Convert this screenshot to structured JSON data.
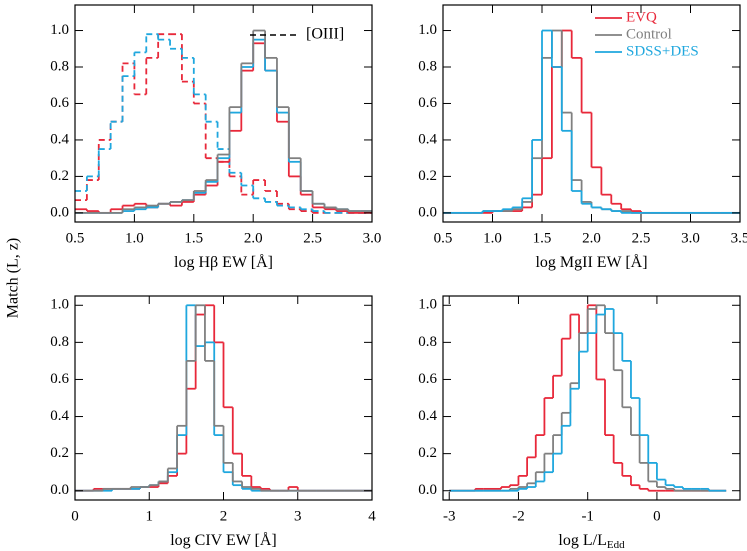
{
  "shared_ylabel": "Match (L, z)",
  "chart_data": [
    {
      "type": "histogram",
      "xlabel": "log Hβ EW [Å]",
      "annotation": "[OIII]",
      "xlim": [
        0.5,
        3.0
      ],
      "ylim": [
        -0.05,
        1.14
      ],
      "xticks": [
        0.5,
        {
          "value": 1,
          "label": "1.0"
        },
        1.5,
        {
          "value": 2,
          "label": "2.0"
        },
        2.5,
        {
          "value": 3,
          "label": "3.0"
        }
      ],
      "yticks": [
        {
          "value": 0,
          "label": "0.0"
        },
        {
          "value": 0.2,
          "label": "0.2"
        },
        {
          "value": 0.4,
          "label": "0.4"
        },
        {
          "value": 0.6,
          "label": "0.6"
        },
        {
          "value": 0.8,
          "label": "0.8"
        },
        {
          "value": 1,
          "label": "1.0"
        }
      ],
      "bins": [
        0.5,
        0.6,
        0.7,
        0.8,
        0.9,
        1.0,
        1.1,
        1.2,
        1.3,
        1.4,
        1.5,
        1.6,
        1.7,
        1.8,
        1.9,
        2.0,
        2.1,
        2.2,
        2.3,
        2.4,
        2.5,
        2.6,
        2.7,
        2.8,
        2.9,
        3.0
      ],
      "series": [
        {
          "color": "#e8283a",
          "dashed": true,
          "values": [
            0.07,
            0.18,
            0.4,
            0.5,
            0.82,
            0.65,
            0.85,
            0.98,
            0.98,
            0.72,
            0.6,
            0.3,
            0.28,
            0.2,
            0.1,
            0.18,
            0.12,
            0.05,
            0.02,
            0.01,
            0,
            0,
            0,
            0,
            0
          ]
        },
        {
          "color": "#1fa7de",
          "dashed": true,
          "values": [
            0.12,
            0.2,
            0.35,
            0.5,
            0.75,
            0.88,
            0.98,
            0.95,
            0.9,
            0.85,
            0.65,
            0.5,
            0.35,
            0.22,
            0.15,
            0.08,
            0.06,
            0.04,
            0.03,
            0.02,
            0.01,
            0,
            0,
            0,
            0
          ]
        },
        {
          "color": "#e8283a",
          "values": [
            0.02,
            0.01,
            0,
            0.02,
            0.04,
            0.05,
            0.03,
            0.05,
            0.04,
            0.06,
            0.1,
            0.15,
            0.28,
            0.45,
            0.78,
            0.93,
            0.78,
            0.5,
            0.2,
            0.1,
            0.03,
            0.02,
            0.01,
            0,
            0
          ]
        },
        {
          "color": "#1fa7de",
          "values": [
            0,
            0,
            0,
            0,
            0.01,
            0.02,
            0.03,
            0.05,
            0.06,
            0.07,
            0.11,
            0.17,
            0.3,
            0.55,
            0.8,
            0.95,
            0.78,
            0.55,
            0.28,
            0.12,
            0.05,
            0.03,
            0.02,
            0.01,
            0.01
          ]
        },
        {
          "color": "#808080",
          "values": [
            0,
            0,
            0,
            0,
            0.02,
            0.03,
            0.04,
            0.05,
            0.06,
            0.07,
            0.12,
            0.18,
            0.32,
            0.58,
            0.82,
            1.0,
            0.85,
            0.58,
            0.3,
            0.12,
            0.05,
            0.03,
            0.02,
            0.01,
            0.01
          ]
        }
      ]
    },
    {
      "type": "histogram",
      "xlabel": "log MgII EW [Å]",
      "legend": "upper right",
      "xlim": [
        0.5,
        3.5
      ],
      "ylim": [
        -0.05,
        1.14
      ],
      "xticks": [
        0.5,
        {
          "value": 1,
          "label": "1.0"
        },
        1.5,
        {
          "value": 2,
          "label": "2.0"
        },
        2.5,
        {
          "value": 3,
          "label": "3.0"
        },
        3.5
      ],
      "yticks": [
        {
          "value": 0,
          "label": "0.0"
        },
        {
          "value": 0.2,
          "label": "0.2"
        },
        {
          "value": 0.4,
          "label": "0.4"
        },
        {
          "value": 0.6,
          "label": "0.6"
        },
        {
          "value": 0.8,
          "label": "0.8"
        },
        {
          "value": 1,
          "label": "1.0"
        }
      ],
      "bins": [
        0.5,
        0.6,
        0.7,
        0.8,
        0.9,
        1.0,
        1.1,
        1.2,
        1.3,
        1.4,
        1.5,
        1.6,
        1.7,
        1.8,
        1.9,
        2.0,
        2.1,
        2.2,
        2.3,
        2.4,
        2.5,
        2.6,
        2.7,
        2.8,
        2.9,
        3.0,
        3.1,
        3.2,
        3.3,
        3.4,
        3.5
      ],
      "series": [
        {
          "name": "EVQ",
          "color": "#e8283a",
          "values": [
            0,
            0,
            0,
            0,
            0,
            0.01,
            0.01,
            0.01,
            0.03,
            0.1,
            0.3,
            0.8,
            1.0,
            0.85,
            0.55,
            0.25,
            0.1,
            0.05,
            0.02,
            0.01,
            0,
            0,
            0,
            0,
            0,
            0,
            0,
            0,
            0,
            0
          ]
        },
        {
          "name": "Control",
          "color": "#808080",
          "values": [
            0,
            0,
            0,
            0,
            0.01,
            0.01,
            0.01,
            0.02,
            0.06,
            0.3,
            0.85,
            1.0,
            0.55,
            0.18,
            0.06,
            0.03,
            0.02,
            0.01,
            0.01,
            0,
            0,
            0,
            0,
            0,
            0,
            0,
            0,
            0,
            0,
            0
          ]
        },
        {
          "name": "SDSS+DES",
          "color": "#1fa7de",
          "values": [
            0,
            0,
            0,
            0,
            0.01,
            0.01,
            0.02,
            0.03,
            0.08,
            0.4,
            1.0,
            0.8,
            0.45,
            0.12,
            0.05,
            0.03,
            0.02,
            0.01,
            0,
            0,
            0,
            0,
            0,
            0,
            0,
            0,
            0,
            0,
            0,
            0
          ]
        }
      ]
    },
    {
      "type": "histogram",
      "xlabel": "log CIV EW [Å]",
      "xlim": [
        0,
        4
      ],
      "ylim": [
        -0.05,
        1.05
      ],
      "xticks": [
        0,
        1,
        2,
        3,
        4
      ],
      "yticks": [
        {
          "value": 0,
          "label": "0.0"
        },
        {
          "value": 0.2,
          "label": "0.2"
        },
        {
          "value": 0.4,
          "label": "0.4"
        },
        {
          "value": 0.6,
          "label": "0.6"
        },
        {
          "value": 0.8,
          "label": "0.8"
        },
        {
          "value": 1,
          "label": "1.0"
        }
      ],
      "bins": [
        0,
        0.125,
        0.25,
        0.375,
        0.5,
        0.625,
        0.75,
        0.875,
        1,
        1.125,
        1.25,
        1.375,
        1.5,
        1.625,
        1.75,
        1.875,
        2,
        2.125,
        2.25,
        2.375,
        2.5,
        2.625,
        2.75,
        2.875,
        3,
        3.125,
        3.25,
        3.375,
        3.5,
        3.625,
        3.75,
        3.875,
        4
      ],
      "series": [
        {
          "color": "#e8283a",
          "values": [
            0,
            0,
            0.01,
            0.01,
            0.01,
            0.01,
            0.01,
            0.02,
            0.02,
            0.04,
            0.08,
            0.2,
            0.55,
            0.95,
            1.0,
            0.8,
            0.45,
            0.2,
            0.08,
            0.02,
            0.01,
            0,
            0,
            0.02,
            0,
            0,
            0,
            0,
            0,
            0,
            0,
            0
          ]
        },
        {
          "color": "#1fa7de",
          "values": [
            0,
            0,
            0,
            0,
            0.01,
            0.01,
            0.01,
            0.02,
            0.03,
            0.05,
            0.1,
            0.3,
            1.0,
            0.78,
            0.8,
            0.3,
            0.1,
            0.03,
            0.01,
            0,
            0,
            0,
            0,
            0,
            0,
            0,
            0,
            0,
            0,
            0,
            0,
            0
          ]
        },
        {
          "color": "#808080",
          "values": [
            0,
            0,
            0,
            0.01,
            0.01,
            0.01,
            0.02,
            0.02,
            0.03,
            0.05,
            0.12,
            0.35,
            0.7,
            1.0,
            0.7,
            0.35,
            0.15,
            0.05,
            0.02,
            0.01,
            0,
            0,
            0,
            0,
            0,
            0,
            0,
            0,
            0,
            0,
            0,
            0
          ]
        }
      ]
    },
    {
      "type": "histogram",
      "xlabel": "log L/L",
      "xlabel_sub": "Edd",
      "xlim": [
        -3.09,
        1.2
      ],
      "ylim": [
        -0.05,
        1.05
      ],
      "xticks": [
        -3,
        -2,
        -1,
        0
      ],
      "yticks": [
        {
          "value": 0,
          "label": "0.0"
        },
        {
          "value": 0.2,
          "label": "0.2"
        },
        {
          "value": 0.4,
          "label": "0.4"
        },
        {
          "value": 0.6,
          "label": "0.6"
        },
        {
          "value": 0.8,
          "label": "0.8"
        },
        {
          "value": 1,
          "label": "1.0"
        }
      ],
      "bins": [
        -3,
        -2.875,
        -2.75,
        -2.625,
        -2.5,
        -2.375,
        -2.25,
        -2.125,
        -2,
        -1.875,
        -1.75,
        -1.625,
        -1.5,
        -1.375,
        -1.25,
        -1.125,
        -1,
        -0.875,
        -0.75,
        -0.625,
        -0.5,
        -0.375,
        -0.25,
        -0.125,
        0,
        0.125,
        0.25,
        0.375,
        0.5,
        0.625,
        0.75,
        0.875,
        1
      ],
      "series": [
        {
          "color": "#e8283a",
          "values": [
            0,
            0,
            0,
            0.01,
            0.01,
            0.01,
            0.02,
            0.03,
            0.08,
            0.18,
            0.3,
            0.5,
            0.62,
            0.82,
            0.95,
            0.85,
            1.0,
            0.6,
            0.3,
            0.15,
            0.08,
            0.03,
            0.01,
            0,
            0,
            0,
            0,
            0,
            0,
            0,
            0,
            0
          ]
        },
        {
          "color": "#808080",
          "values": [
            0,
            0,
            0,
            0,
            0,
            0,
            0,
            0.01,
            0.02,
            0.04,
            0.1,
            0.2,
            0.3,
            0.42,
            0.58,
            0.85,
            0.98,
            1.0,
            0.85,
            0.65,
            0.45,
            0.3,
            0.15,
            0.05,
            0.02,
            0.01,
            0,
            0,
            0,
            0,
            0,
            0
          ]
        },
        {
          "color": "#1fa7de",
          "values": [
            0,
            0,
            0,
            0,
            0,
            0,
            0,
            0,
            0.01,
            0.02,
            0.05,
            0.1,
            0.2,
            0.35,
            0.55,
            0.75,
            0.85,
            0.95,
            0.98,
            0.85,
            0.7,
            0.5,
            0.3,
            0.15,
            0.06,
            0.03,
            0.02,
            0.01,
            0.01,
            0.01,
            0,
            0
          ]
        }
      ]
    }
  ]
}
